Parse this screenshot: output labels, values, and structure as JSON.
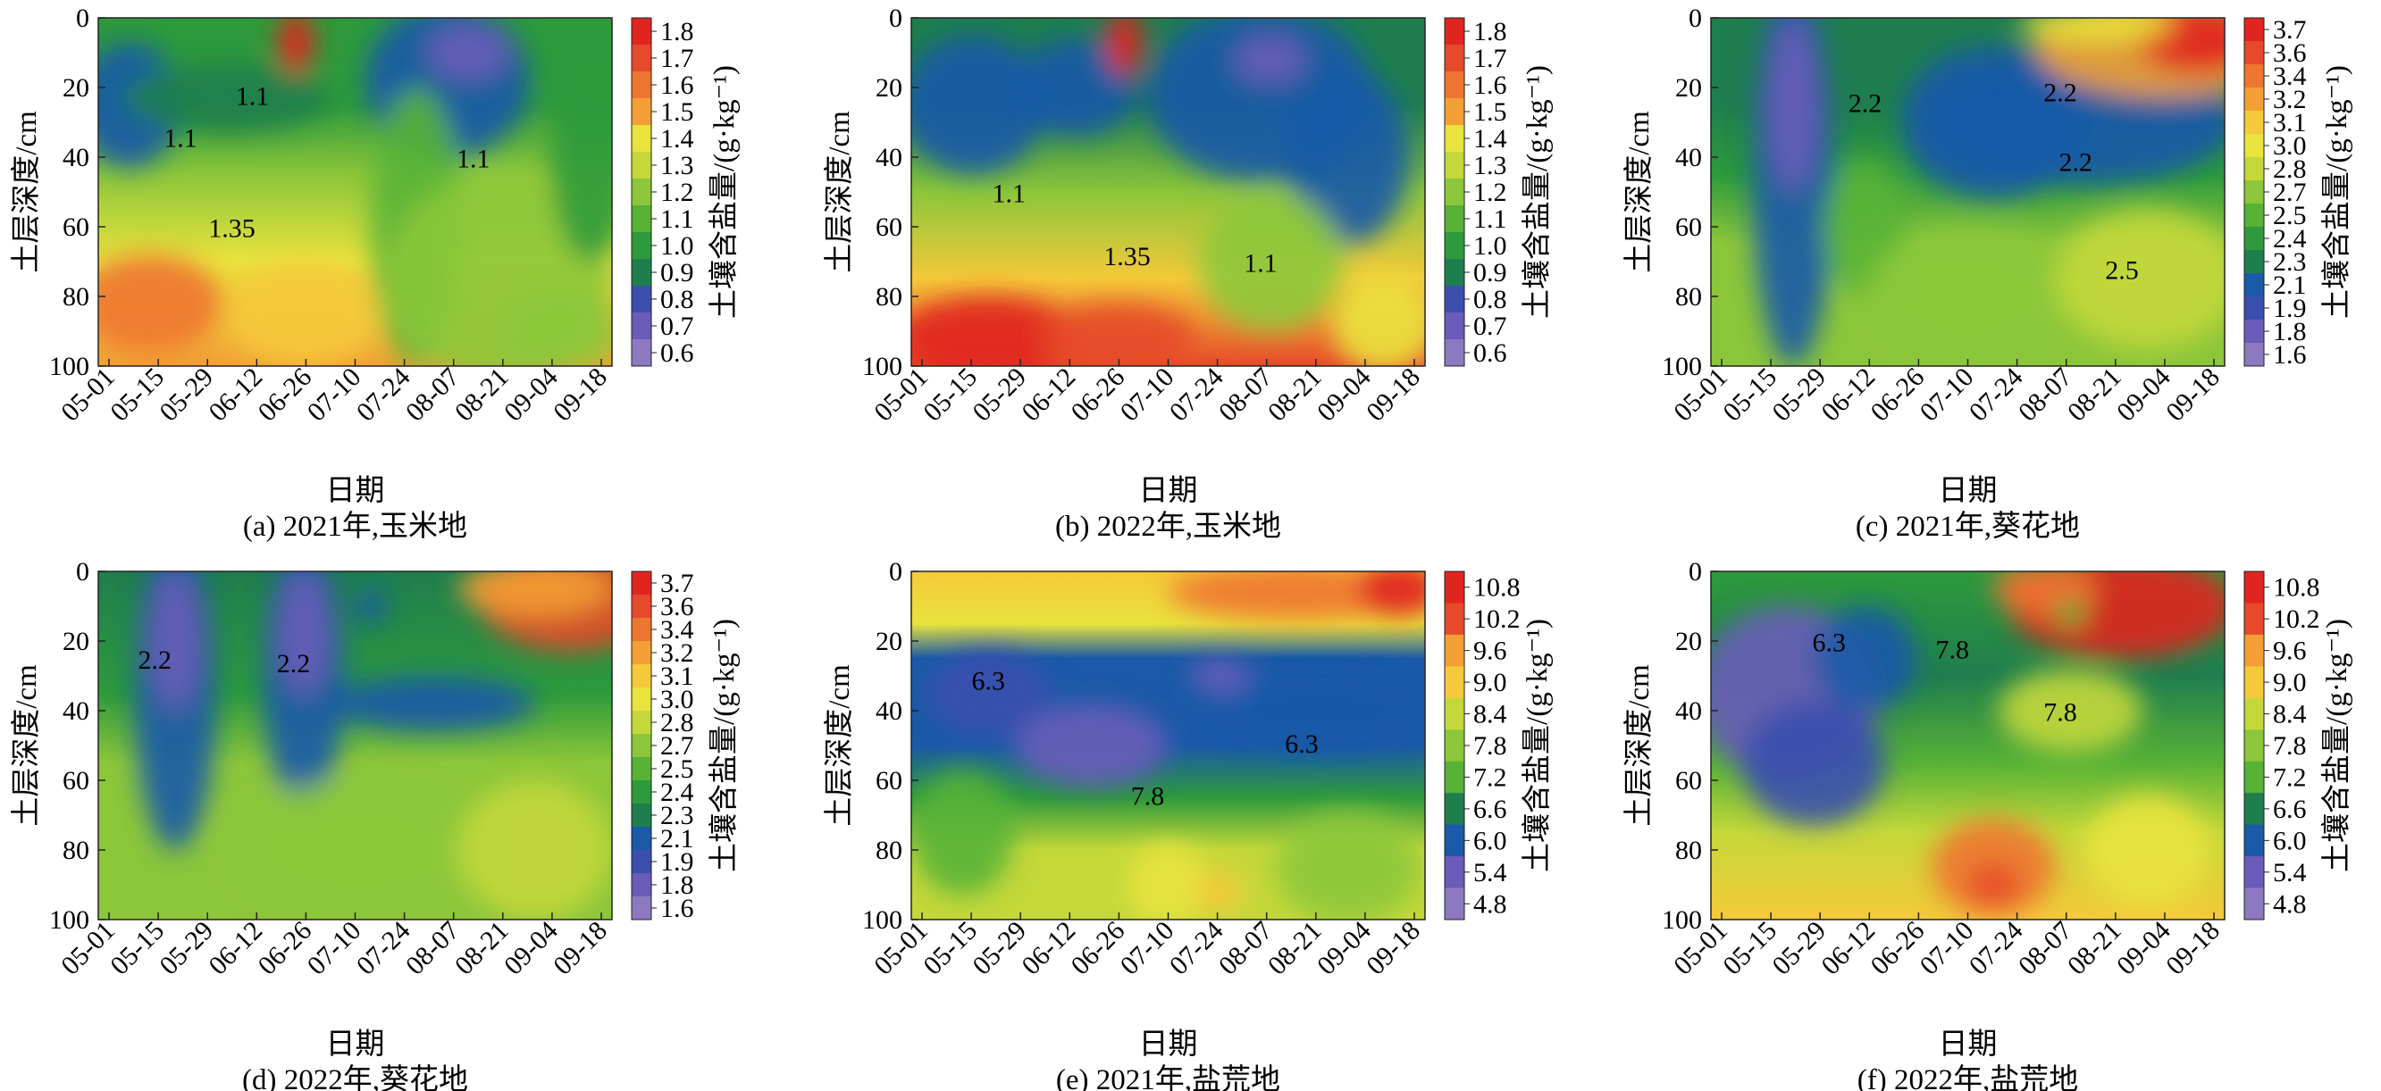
{
  "figure": {
    "x_axis_label": "日期",
    "y_axis_label": "土层深度/cm",
    "colorbar_label": "土壤含盐量/(g·kg⁻¹)",
    "x_ticks": [
      "05-01",
      "05-15",
      "05-29",
      "06-12",
      "06-26",
      "07-10",
      "07-24",
      "08-07",
      "08-21",
      "09-04",
      "09-18"
    ],
    "y_ticks": [
      "0",
      "20",
      "40",
      "60",
      "80",
      "100"
    ]
  },
  "colors": {
    "palette_low_to_high": [
      "#8c79c0",
      "#6a5cb8",
      "#3a4fae",
      "#1a5aa8",
      "#1f7e4e",
      "#2e9a3c",
      "#57b236",
      "#8cc63a",
      "#c4d83a",
      "#e9e33d",
      "#f5c93a",
      "#f39f35",
      "#ee7630",
      "#e64a2a",
      "#e0251f"
    ]
  },
  "chart_data": [
    {
      "type": "heatmap",
      "caption": "(a) 2021年,玉米地",
      "xlabel": "日期",
      "ylabel": "土层深度/cm",
      "ylim": [
        0,
        100
      ],
      "colorbar_label": "土壤含盐量/(g·kg⁻¹)",
      "colorbar_ticks": [
        "1.8",
        "1.7",
        "1.6",
        "1.5",
        "1.4",
        "1.3",
        "1.2",
        "1.1",
        "1.0",
        "0.9",
        "0.8",
        "0.7",
        "0.6"
      ],
      "contour_labels": [
        "1.1",
        "1.1",
        "1.1",
        "1.35"
      ],
      "grid": false
    },
    {
      "type": "heatmap",
      "caption": "(b) 2022年,玉米地",
      "xlabel": "日期",
      "ylabel": "土层深度/cm",
      "ylim": [
        0,
        100
      ],
      "colorbar_label": "土壤含盐量/(g·kg⁻¹)",
      "colorbar_ticks": [
        "1.8",
        "1.7",
        "1.6",
        "1.5",
        "1.4",
        "1.3",
        "1.2",
        "1.1",
        "1.0",
        "0.9",
        "0.8",
        "0.7",
        "0.6"
      ],
      "contour_labels": [
        "1.1",
        "1.35",
        "1.1"
      ],
      "grid": false
    },
    {
      "type": "heatmap",
      "caption": "(c) 2021年,葵花地",
      "xlabel": "日期",
      "ylabel": "土层深度/cm",
      "ylim": [
        0,
        100
      ],
      "colorbar_label": "土壤含盐量/(g·kg⁻¹)",
      "colorbar_ticks": [
        "3.7",
        "3.6",
        "3.4",
        "3.2",
        "3.1",
        "3.0",
        "2.8",
        "2.7",
        "2.5",
        "2.4",
        "2.3",
        "2.1",
        "1.9",
        "1.8",
        "1.6"
      ],
      "contour_labels": [
        "2.2",
        "2.2",
        "2.2",
        "2.5"
      ],
      "grid": false
    },
    {
      "type": "heatmap",
      "caption": "(d) 2022年,葵花地",
      "xlabel": "日期",
      "ylabel": "土层深度/cm",
      "ylim": [
        0,
        100
      ],
      "colorbar_label": "土壤含盐量/(g·kg⁻¹)",
      "colorbar_ticks": [
        "3.7",
        "3.6",
        "3.4",
        "3.2",
        "3.1",
        "3.0",
        "2.8",
        "2.7",
        "2.5",
        "2.4",
        "2.3",
        "2.1",
        "1.9",
        "1.8",
        "1.6"
      ],
      "contour_labels": [
        "2.2",
        "2.2"
      ],
      "grid": false
    },
    {
      "type": "heatmap",
      "caption": "(e) 2021年,盐荒地",
      "xlabel": "日期",
      "ylabel": "土层深度/cm",
      "ylim": [
        0,
        100
      ],
      "colorbar_label": "土壤含盐量/(g·kg⁻¹)",
      "colorbar_ticks": [
        "10.8",
        "10.2",
        "9.6",
        "9.0",
        "8.4",
        "7.8",
        "7.2",
        "6.6",
        "6.0",
        "5.4",
        "4.8"
      ],
      "contour_labels": [
        "6.3",
        "6.3",
        "7.8"
      ],
      "grid": false
    },
    {
      "type": "heatmap",
      "caption": "(f) 2022年,盐荒地",
      "xlabel": "日期",
      "ylabel": "土层深度/cm",
      "ylim": [
        0,
        100
      ],
      "colorbar_label": "土壤含盐量/(g·kg⁻¹)",
      "colorbar_ticks": [
        "10.8",
        "10.2",
        "9.6",
        "9.0",
        "8.4",
        "7.8",
        "7.2",
        "6.6",
        "6.0",
        "5.4",
        "4.8"
      ],
      "contour_labels": [
        "6.3",
        "7.8",
        "7.8"
      ],
      "grid": false
    }
  ]
}
